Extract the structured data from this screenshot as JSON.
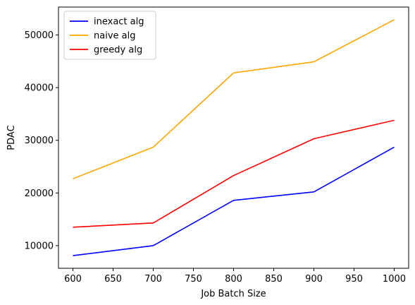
{
  "chart_data": {
    "type": "line",
    "title": "",
    "xlabel": "Job Batch Size",
    "ylabel": "PDAC",
    "x": [
      600,
      700,
      800,
      900,
      1000
    ],
    "xlim": [
      582,
      1018
    ],
    "ylim": [
      5700,
      55300
    ],
    "xticks": [
      600,
      650,
      700,
      750,
      800,
      850,
      900,
      950,
      1000
    ],
    "yticks": [
      10000,
      20000,
      30000,
      40000,
      50000
    ],
    "grid": false,
    "legend_position": "upper-left",
    "series": [
      {
        "name": "inexact alg",
        "color": "#0000ff",
        "values": [
          8100,
          10000,
          18600,
          20200,
          28700
        ]
      },
      {
        "name": "naive alg",
        "color": "#ffa500",
        "values": [
          22700,
          28700,
          42800,
          44900,
          52900
        ]
      },
      {
        "name": "greedy alg",
        "color": "#ff0000",
        "values": [
          13500,
          14300,
          23300,
          30300,
          33800
        ]
      }
    ]
  }
}
